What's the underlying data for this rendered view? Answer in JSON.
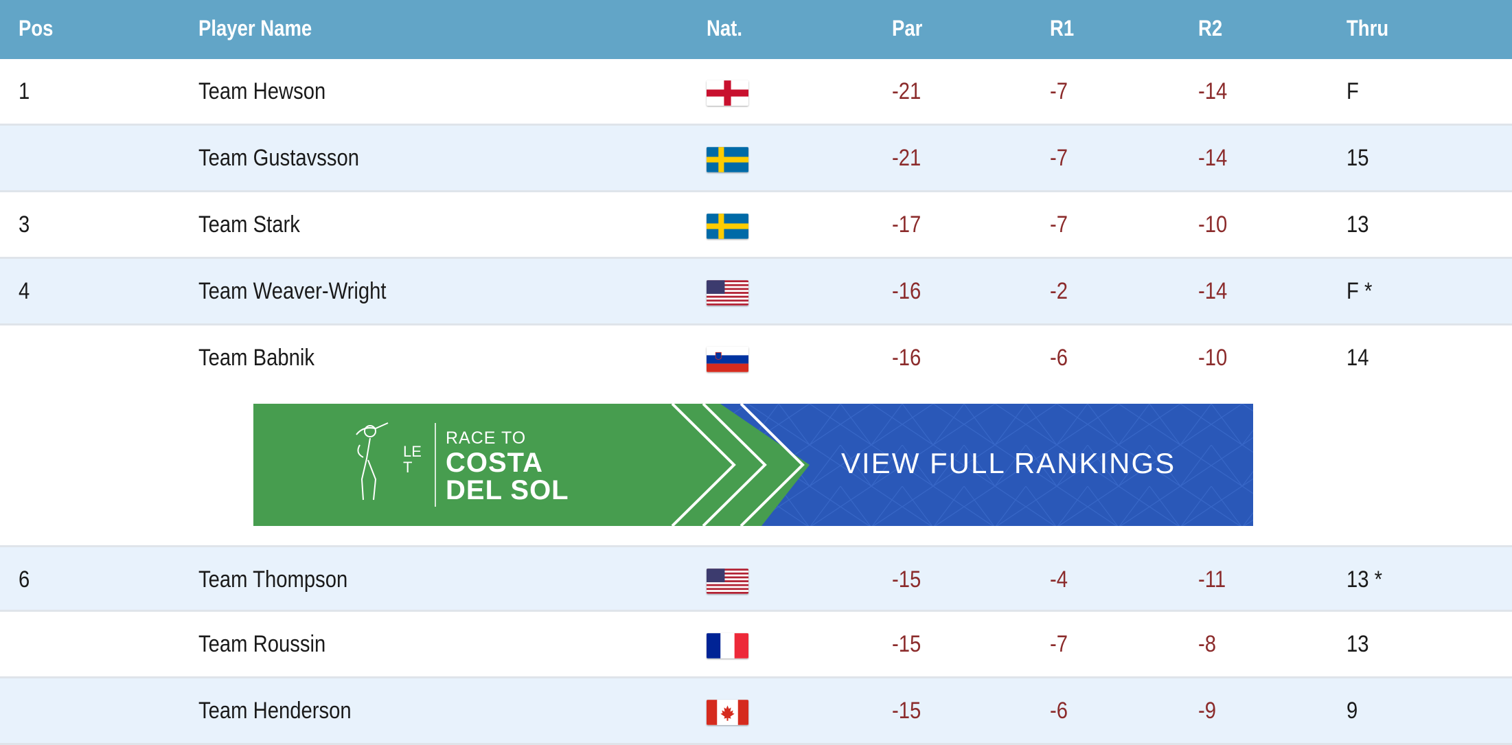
{
  "columns": {
    "pos": "Pos",
    "name": "Player Name",
    "nat": "Nat.",
    "par": "Par",
    "r1": "R1",
    "r2": "R2",
    "thru": "Thru"
  },
  "rows": [
    {
      "pos": "1",
      "name": "Team Hewson",
      "nat": "england-flag-icon",
      "par": "-21",
      "r1": "-7",
      "r2": "-14",
      "thru": "F"
    },
    {
      "pos": "",
      "name": "Team Gustavsson",
      "nat": "sweden-flag-icon",
      "par": "-21",
      "r1": "-7",
      "r2": "-14",
      "thru": "15"
    },
    {
      "pos": "3",
      "name": "Team Stark",
      "nat": "sweden-flag-icon",
      "par": "-17",
      "r1": "-7",
      "r2": "-10",
      "thru": "13"
    },
    {
      "pos": "4",
      "name": "Team Weaver-Wright",
      "nat": "usa-flag-icon",
      "par": "-16",
      "r1": "-2",
      "r2": "-14",
      "thru": "F *"
    },
    {
      "pos": "",
      "name": "Team Babnik",
      "nat": "slovenia-flag-icon",
      "par": "-16",
      "r1": "-6",
      "r2": "-10",
      "thru": "14"
    },
    {
      "pos": "6",
      "name": "Team Thompson",
      "nat": "usa-flag-icon",
      "par": "-15",
      "r1": "-4",
      "r2": "-11",
      "thru": "13 *"
    },
    {
      "pos": "",
      "name": "Team Roussin",
      "nat": "france-flag-icon",
      "par": "-15",
      "r1": "-7",
      "r2": "-8",
      "thru": "13"
    },
    {
      "pos": "",
      "name": "Team Henderson",
      "nat": "canada-flag-icon",
      "par": "-15",
      "r1": "-6",
      "r2": "-9",
      "thru": "9"
    }
  ],
  "banner": {
    "logo": "LET",
    "race_to": "RACE TO",
    "line1": "COSTA",
    "line2": "DEL SOL",
    "cta": "VIEW FULL RANKINGS",
    "green": "#479d4f",
    "blue": "#2a58b8"
  },
  "colors": {
    "header": "#62a5c7",
    "score": "#8b2b2b",
    "alt_row": "#e8f2fc"
  }
}
